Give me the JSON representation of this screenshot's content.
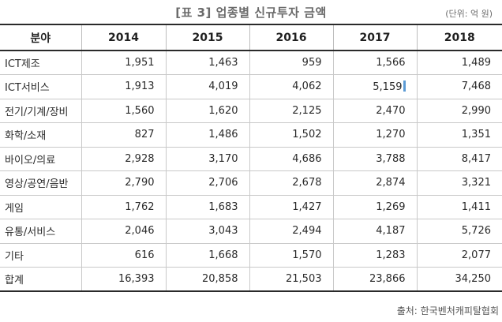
{
  "title": "[표 3] 업종별 신규투자 금액",
  "unit": "(단위: 억 원)",
  "table": {
    "headers": [
      "분야",
      "2014",
      "2015",
      "2016",
      "2017",
      "2018"
    ],
    "rows": [
      [
        "ICT제조",
        "1,951",
        "1,463",
        "959",
        "1,566",
        "1,489"
      ],
      [
        "ICT서비스",
        "1,913",
        "4,019",
        "4,062",
        "5,159",
        "7,468"
      ],
      [
        "전기/기계/장비",
        "1,560",
        "1,620",
        "2,125",
        "2,470",
        "2,990"
      ],
      [
        "화학/소재",
        "827",
        "1,486",
        "1,502",
        "1,270",
        "1,351"
      ],
      [
        "바이오/의료",
        "2,928",
        "3,170",
        "4,686",
        "3,788",
        "8,417"
      ],
      [
        "영상/공연/음반",
        "2,790",
        "2,706",
        "2,678",
        "2,874",
        "3,321"
      ],
      [
        "게임",
        "1,762",
        "1,683",
        "1,427",
        "1,269",
        "1,411"
      ],
      [
        "유통/서비스",
        "2,046",
        "3,043",
        "2,494",
        "4,187",
        "5,726"
      ],
      [
        "기타",
        "616",
        "1,668",
        "1,570",
        "1,283",
        "2,077"
      ],
      [
        "합계",
        "16,393",
        "20,858",
        "21,503",
        "23,866",
        "34,250"
      ]
    ]
  },
  "source": "출처: 한국벤처캐피탈협회"
}
